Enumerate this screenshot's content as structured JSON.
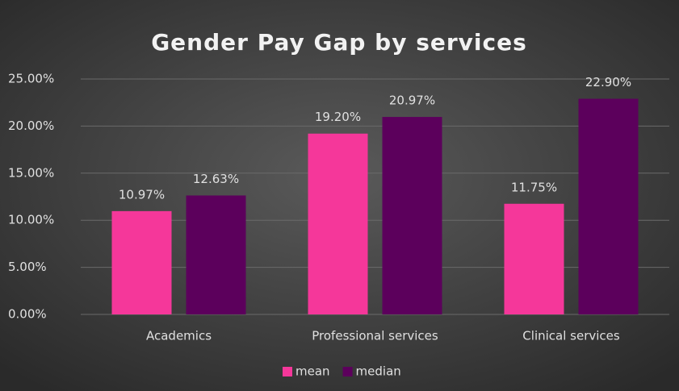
{
  "chart_data": {
    "type": "bar",
    "title": "Gender Pay Gap by services",
    "categories": [
      "Academics",
      "Professional services",
      "Clinical services"
    ],
    "series": [
      {
        "name": "mean",
        "color": "#f5379a",
        "values": [
          10.97,
          19.2,
          11.75
        ],
        "value_labels": [
          "10.97%",
          "19.20%",
          "11.75%"
        ]
      },
      {
        "name": "median",
        "color": "#5c005c",
        "values": [
          12.63,
          20.97,
          22.9
        ],
        "value_labels": [
          "12.63%",
          "20.97%",
          "22.90%"
        ]
      }
    ],
    "ylim": [
      0,
      25
    ],
    "yticks": [
      {
        "value": 0,
        "label": "0.00%"
      },
      {
        "value": 5,
        "label": "5.00%"
      },
      {
        "value": 10,
        "label": "10.00%"
      },
      {
        "value": 15,
        "label": "15.00%"
      },
      {
        "value": 20,
        "label": "20.00%"
      },
      {
        "value": 25,
        "label": "25.00%"
      }
    ],
    "grid": true,
    "legend": "bottom"
  }
}
